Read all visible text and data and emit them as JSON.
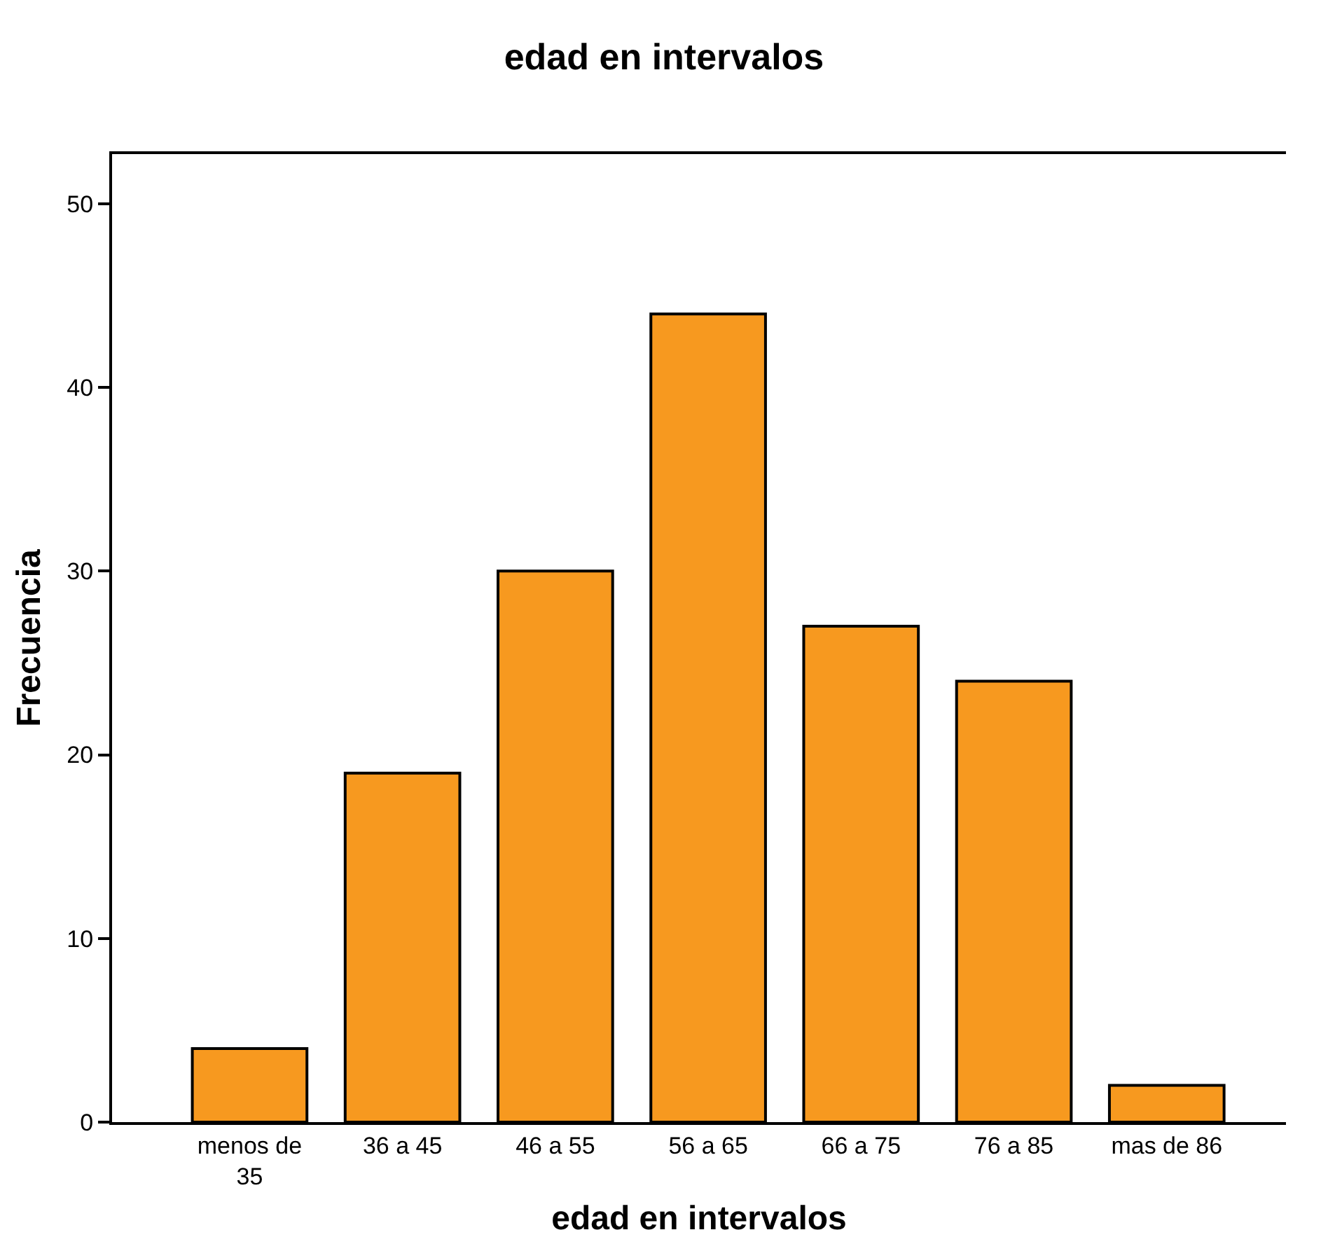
{
  "chart_data": {
    "type": "bar",
    "title": "edad en intervalos",
    "xlabel": "edad en intervalos",
    "ylabel": "Frecuencia",
    "categories": [
      "menos de 35",
      "36 a 45",
      "46 a 55",
      "56 a 65",
      "66 a 75",
      "76 a 85",
      "mas de 86"
    ],
    "values": [
      4,
      19,
      30,
      44,
      27,
      24,
      2
    ],
    "color": "#f7991f",
    "ylim": [
      0,
      52.7
    ],
    "yticks": [
      0,
      10,
      20,
      30,
      40,
      50
    ],
    "grid": false,
    "legend": false
  }
}
